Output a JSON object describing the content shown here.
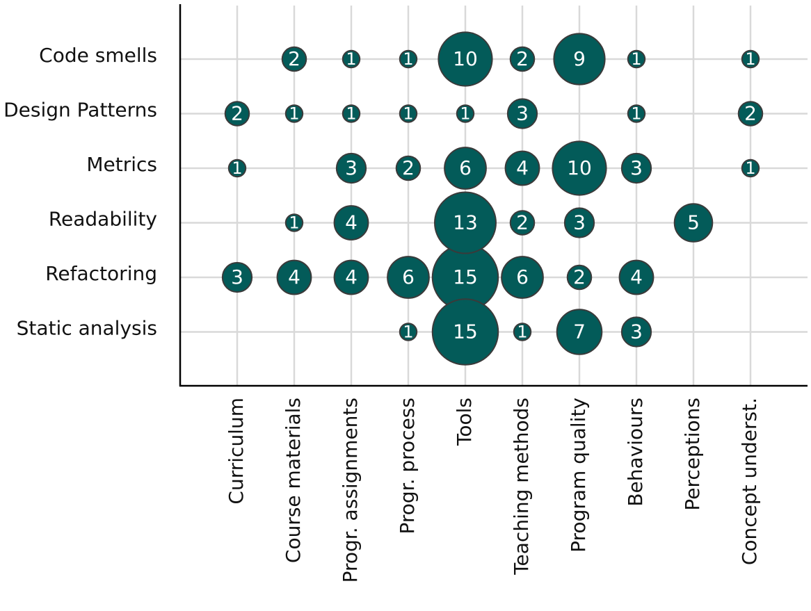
{
  "chart_data": {
    "type": "bubble",
    "title": "",
    "xlabel": "",
    "ylabel": "",
    "grid": true,
    "legend": "none",
    "colors": {
      "bubble": "#035b59",
      "bubble_stroke": "#3a3a3a",
      "grid": "#d9d9d9",
      "axis": "#000000",
      "bubble_text": "#ffffff"
    },
    "x_categories": [
      "Curriculum",
      "Course materials",
      "Progr. assignments",
      "Progr. process",
      "Tools",
      "Teaching methods",
      "Program quality",
      "Behaviours",
      "Perceptions",
      "Concept underst."
    ],
    "y_categories": [
      "Code smells",
      "Design Patterns",
      "Metrics",
      "Readability",
      "Refactoring",
      "Static analysis"
    ],
    "points": [
      {
        "y": "Code smells",
        "x": "Course materials",
        "value": 2
      },
      {
        "y": "Code smells",
        "x": "Progr. assignments",
        "value": 1
      },
      {
        "y": "Code smells",
        "x": "Progr. process",
        "value": 1
      },
      {
        "y": "Code smells",
        "x": "Tools",
        "value": 10
      },
      {
        "y": "Code smells",
        "x": "Teaching methods",
        "value": 2
      },
      {
        "y": "Code smells",
        "x": "Program quality",
        "value": 9
      },
      {
        "y": "Code smells",
        "x": "Behaviours",
        "value": 1
      },
      {
        "y": "Code smells",
        "x": "Concept underst.",
        "value": 1
      },
      {
        "y": "Design Patterns",
        "x": "Curriculum",
        "value": 2
      },
      {
        "y": "Design Patterns",
        "x": "Course materials",
        "value": 1
      },
      {
        "y": "Design Patterns",
        "x": "Progr. assignments",
        "value": 1
      },
      {
        "y": "Design Patterns",
        "x": "Progr. process",
        "value": 1
      },
      {
        "y": "Design Patterns",
        "x": "Tools",
        "value": 1
      },
      {
        "y": "Design Patterns",
        "x": "Teaching methods",
        "value": 3
      },
      {
        "y": "Design Patterns",
        "x": "Behaviours",
        "value": 1
      },
      {
        "y": "Design Patterns",
        "x": "Concept underst.",
        "value": 2
      },
      {
        "y": "Metrics",
        "x": "Curriculum",
        "value": 1
      },
      {
        "y": "Metrics",
        "x": "Progr. assignments",
        "value": 3
      },
      {
        "y": "Metrics",
        "x": "Progr. process",
        "value": 2
      },
      {
        "y": "Metrics",
        "x": "Tools",
        "value": 6
      },
      {
        "y": "Metrics",
        "x": "Teaching methods",
        "value": 4
      },
      {
        "y": "Metrics",
        "x": "Program quality",
        "value": 10
      },
      {
        "y": "Metrics",
        "x": "Behaviours",
        "value": 3
      },
      {
        "y": "Metrics",
        "x": "Concept underst.",
        "value": 1
      },
      {
        "y": "Readability",
        "x": "Course materials",
        "value": 1
      },
      {
        "y": "Readability",
        "x": "Progr. assignments",
        "value": 4
      },
      {
        "y": "Readability",
        "x": "Tools",
        "value": 13
      },
      {
        "y": "Readability",
        "x": "Teaching methods",
        "value": 2
      },
      {
        "y": "Readability",
        "x": "Program quality",
        "value": 3
      },
      {
        "y": "Readability",
        "x": "Perceptions",
        "value": 5
      },
      {
        "y": "Refactoring",
        "x": "Curriculum",
        "value": 3
      },
      {
        "y": "Refactoring",
        "x": "Course materials",
        "value": 4
      },
      {
        "y": "Refactoring",
        "x": "Progr. assignments",
        "value": 4
      },
      {
        "y": "Refactoring",
        "x": "Progr. process",
        "value": 6
      },
      {
        "y": "Refactoring",
        "x": "Tools",
        "value": 15
      },
      {
        "y": "Refactoring",
        "x": "Teaching methods",
        "value": 6
      },
      {
        "y": "Refactoring",
        "x": "Program quality",
        "value": 2
      },
      {
        "y": "Refactoring",
        "x": "Behaviours",
        "value": 4
      },
      {
        "y": "Static analysis",
        "x": "Progr. process",
        "value": 1
      },
      {
        "y": "Static analysis",
        "x": "Tools",
        "value": 15
      },
      {
        "y": "Static analysis",
        "x": "Teaching methods",
        "value": 1
      },
      {
        "y": "Static analysis",
        "x": "Program quality",
        "value": 7
      },
      {
        "y": "Static analysis",
        "x": "Behaviours",
        "value": 3
      }
    ]
  }
}
